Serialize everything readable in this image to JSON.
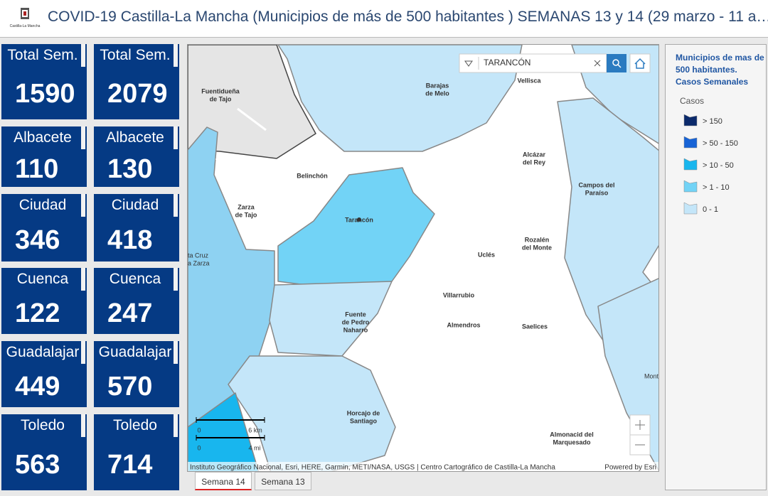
{
  "header": {
    "logo_text": "Castilla-La Mancha",
    "title": "COVID-19 Castilla-La Mancha (Municipios de más de 500 habitantes ) SEMANAS 13 y 14 (29 marzo - 11 a…"
  },
  "cards": [
    {
      "label": "Total Sem.",
      "value": 1590
    },
    {
      "label": "Total Sem.",
      "value": 2079
    },
    {
      "label": "Albacete",
      "value": 110
    },
    {
      "label": "Albacete",
      "value": 130
    },
    {
      "label": "Ciudad",
      "value": 346
    },
    {
      "label": "Ciudad",
      "value": 418
    },
    {
      "label": "Cuenca",
      "value": 122
    },
    {
      "label": "Cuenca",
      "value": 247
    },
    {
      "label": "Guadalajar",
      "value": 449
    },
    {
      "label": "Guadalajar",
      "value": 570
    },
    {
      "label": "Toledo",
      "value": 563
    },
    {
      "label": "Toledo",
      "value": 714
    }
  ],
  "map": {
    "search": "TARANCÓN",
    "places": [
      [
        "Fuentidueña",
        "de Tajo"
      ],
      [
        "Barajas",
        "de Melo"
      ],
      [
        "Vellisca"
      ],
      [
        "Alcázar",
        "del Rey"
      ],
      [
        "Belinchón"
      ],
      [
        "Campos del",
        "Paraíso"
      ],
      [
        "Zarza",
        "de Tajo"
      ],
      [
        "Tarancón"
      ],
      [
        "Uclés"
      ],
      [
        "Rozalén",
        "del Monte"
      ],
      [
        "ta Cruz",
        "a Zarza"
      ],
      [
        "Villarrubio"
      ],
      [
        "Fuente",
        "de Pedro",
        "Naharro"
      ],
      [
        "Almendros"
      ],
      [
        "Saelices"
      ],
      [
        "Mont"
      ],
      [
        "Horcajo de",
        "Santiago"
      ],
      [
        "Almonacid del",
        "Marquesado"
      ]
    ],
    "scale": [
      "0",
      "6 km",
      "0",
      "4 mi"
    ],
    "attribution": "Instituto Geográfico Nacional, Esri, HERE, Garmin, METI/NASA, USGS | Centro Cartográfico de Castilla-La Mancha",
    "powered": "Powered by Esri"
  },
  "legend": {
    "title": "Municipios de mas de 500 habitantes. Casos Semanales",
    "field": "Casos",
    "items": [
      {
        "label": "> 150",
        "color": "#0b2a6b"
      },
      {
        "label": "> 50 - 150",
        "color": "#1763d6"
      },
      {
        "label": "> 10 - 50",
        "color": "#18b6ee"
      },
      {
        "label": "> 1 - 10",
        "color": "#72d3f6"
      },
      {
        "label": "0 - 1",
        "color": "#c4e6f9"
      }
    ]
  },
  "tabs": [
    "Semana 14",
    "Semana 13"
  ]
}
